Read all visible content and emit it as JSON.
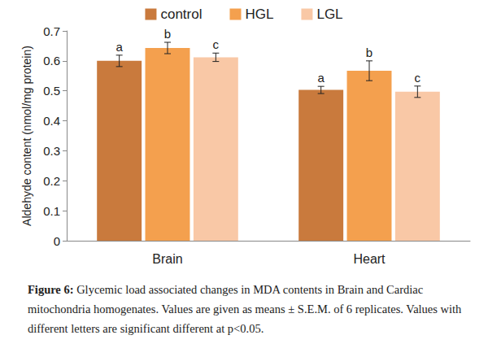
{
  "chart_data": {
    "type": "bar",
    "y_label": "Aldehyde content (nmol/mg protein)",
    "categories": [
      "Brain",
      "Heart"
    ],
    "series": [
      {
        "name": "control",
        "color": "#c97a3d",
        "values": [
          0.6,
          0.503
        ],
        "errors": [
          0.019,
          0.012
        ],
        "letters": [
          "a",
          "a"
        ]
      },
      {
        "name": "HGL",
        "color": "#f4a04e",
        "values": [
          0.643,
          0.567
        ],
        "errors": [
          0.019,
          0.033
        ],
        "letters": [
          "b",
          "b"
        ]
      },
      {
        "name": "LGL",
        "color": "#f9c8a6",
        "values": [
          0.612,
          0.497
        ],
        "errors": [
          0.014,
          0.019
        ],
        "letters": [
          "c",
          "c"
        ]
      }
    ],
    "ylim": [
      0,
      0.7
    ],
    "yticks": [
      0,
      0.1,
      0.2,
      0.3,
      0.4,
      0.5,
      0.6,
      0.7
    ],
    "grid": false,
    "legend": "top",
    "caption_label": "Figure 6:",
    "caption": "Glycemic load associated changes in MDA contents in Brain and Cardiac mitochondria homogenates. Values are given as means ± S.E.M. of 6 replicates. Values with different letters are significant different at p<0.05."
  }
}
